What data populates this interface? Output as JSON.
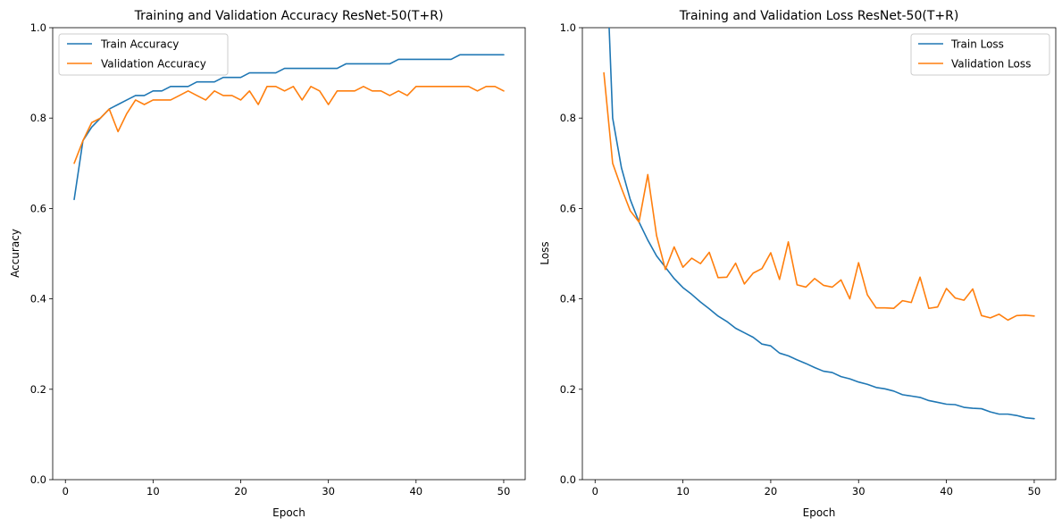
{
  "chart_data": [
    {
      "type": "line",
      "title": "Training and Validation Accuracy ResNet-50(T+R)",
      "xlabel": "Epoch",
      "ylabel": "Accuracy",
      "xlim": [
        -1.45,
        52.45
      ],
      "ylim": [
        0,
        1
      ],
      "xticks": [
        0,
        10,
        20,
        30,
        40,
        50
      ],
      "yticks": [
        0.0,
        0.2,
        0.4,
        0.6,
        0.8,
        1.0
      ],
      "xtick_labels": [
        "0",
        "10",
        "20",
        "30",
        "40",
        "50"
      ],
      "ytick_labels": [
        "0.0",
        "0.2",
        "0.4",
        "0.6",
        "0.8",
        "1.0"
      ],
      "grid": false,
      "legend_position": "upper-left",
      "x": [
        1,
        2,
        3,
        4,
        5,
        6,
        7,
        8,
        9,
        10,
        11,
        12,
        13,
        14,
        15,
        16,
        17,
        18,
        19,
        20,
        21,
        22,
        23,
        24,
        25,
        26,
        27,
        28,
        29,
        30,
        31,
        32,
        33,
        34,
        35,
        36,
        37,
        38,
        39,
        40,
        41,
        42,
        43,
        44,
        45,
        46,
        47,
        48,
        49,
        50
      ],
      "series": [
        {
          "name": "Train Accuracy",
          "color": "#1f77b4",
          "values": [
            0.62,
            0.75,
            0.78,
            0.8,
            0.82,
            0.83,
            0.84,
            0.85,
            0.85,
            0.86,
            0.86,
            0.87,
            0.87,
            0.87,
            0.88,
            0.88,
            0.88,
            0.89,
            0.89,
            0.89,
            0.9,
            0.9,
            0.9,
            0.9,
            0.91,
            0.91,
            0.91,
            0.91,
            0.91,
            0.91,
            0.91,
            0.92,
            0.92,
            0.92,
            0.92,
            0.92,
            0.92,
            0.93,
            0.93,
            0.93,
            0.93,
            0.93,
            0.93,
            0.93,
            0.94,
            0.94,
            0.94,
            0.94,
            0.94,
            0.94
          ]
        },
        {
          "name": "Validation Accuracy",
          "color": "#ff7f0e",
          "values": [
            0.7,
            0.75,
            0.79,
            0.8,
            0.82,
            0.77,
            0.81,
            0.84,
            0.83,
            0.84,
            0.84,
            0.84,
            0.85,
            0.86,
            0.85,
            0.84,
            0.86,
            0.85,
            0.85,
            0.84,
            0.86,
            0.83,
            0.87,
            0.87,
            0.86,
            0.87,
            0.84,
            0.87,
            0.86,
            0.83,
            0.86,
            0.86,
            0.86,
            0.87,
            0.86,
            0.86,
            0.85,
            0.86,
            0.85,
            0.87,
            0.87,
            0.87,
            0.87,
            0.87,
            0.87,
            0.87,
            0.86,
            0.87,
            0.87,
            0.86
          ]
        }
      ]
    },
    {
      "type": "line",
      "title": "Training and Validation Loss ResNet-50(T+R)",
      "xlabel": "Epoch",
      "ylabel": "Loss",
      "xlim": [
        -1.45,
        52.45
      ],
      "ylim": [
        0,
        1
      ],
      "xticks": [
        0,
        10,
        20,
        30,
        40,
        50
      ],
      "yticks": [
        0.0,
        0.2,
        0.4,
        0.6,
        0.8,
        1.0
      ],
      "xtick_labels": [
        "0",
        "10",
        "20",
        "30",
        "40",
        "50"
      ],
      "ytick_labels": [
        "0.0",
        "0.2",
        "0.4",
        "0.6",
        "0.8",
        "1.0"
      ],
      "grid": false,
      "legend_position": "upper-right",
      "x": [
        1,
        2,
        3,
        4,
        5,
        6,
        7,
        8,
        9,
        10,
        11,
        12,
        13,
        14,
        15,
        16,
        17,
        18,
        19,
        20,
        21,
        22,
        23,
        24,
        25,
        26,
        27,
        28,
        29,
        30,
        31,
        32,
        33,
        34,
        35,
        36,
        37,
        38,
        39,
        40,
        41,
        42,
        43,
        44,
        45,
        46,
        47,
        48,
        49,
        50
      ],
      "series": [
        {
          "name": "Train Loss",
          "color": "#1f77b4",
          "values": [
            1.3,
            0.8,
            0.69,
            0.62,
            0.57,
            0.53,
            0.495,
            0.47,
            0.445,
            0.425,
            0.41,
            0.393,
            0.378,
            0.362,
            0.35,
            0.335,
            0.325,
            0.315,
            0.3,
            0.296,
            0.28,
            0.274,
            0.265,
            0.257,
            0.248,
            0.24,
            0.237,
            0.228,
            0.223,
            0.216,
            0.211,
            0.204,
            0.201,
            0.196,
            0.188,
            0.185,
            0.182,
            0.175,
            0.171,
            0.167,
            0.166,
            0.16,
            0.158,
            0.157,
            0.15,
            0.145,
            0.145,
            0.142,
            0.137,
            0.135
          ]
        },
        {
          "name": "Validation Loss",
          "color": "#ff7f0e",
          "values": [
            0.9,
            0.7,
            0.645,
            0.595,
            0.57,
            0.675,
            0.54,
            0.465,
            0.515,
            0.47,
            0.49,
            0.478,
            0.503,
            0.447,
            0.448,
            0.479,
            0.433,
            0.457,
            0.467,
            0.502,
            0.443,
            0.526,
            0.431,
            0.426,
            0.445,
            0.43,
            0.426,
            0.442,
            0.4,
            0.48,
            0.409,
            0.38,
            0.38,
            0.379,
            0.396,
            0.392,
            0.448,
            0.379,
            0.382,
            0.423,
            0.402,
            0.397,
            0.422,
            0.363,
            0.358,
            0.366,
            0.353,
            0.363,
            0.364,
            0.362
          ]
        }
      ]
    }
  ]
}
